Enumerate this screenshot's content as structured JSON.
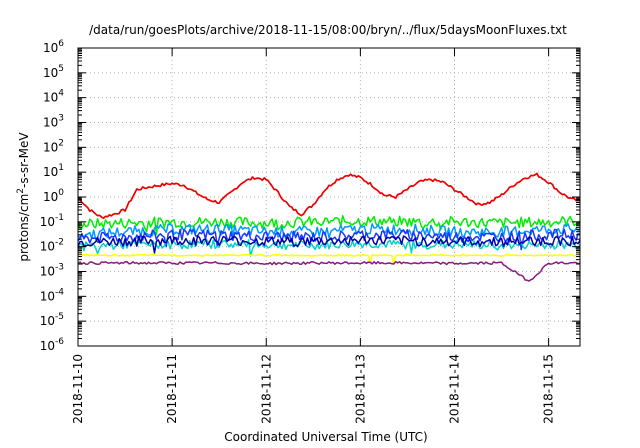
{
  "chart_data": {
    "type": "line",
    "title": "/data/run/goesPlots/archive/2018-11-15/08:00/bryn/../flux/5daysMoonFluxes.txt",
    "xlabel": "Coordinated Universal Time (UTC)",
    "ylabel": "protons/cm²-s-sr-MeV",
    "ylabel_parts": {
      "main": "protons/cm",
      "sup": "2",
      "rest": "-s-sr-MeV"
    },
    "yscale": "log",
    "ylim": [
      1e-06,
      1000000.0
    ],
    "y_tick_labels": [
      {
        "base": "10",
        "exp": "-6",
        "value": 1e-06
      },
      {
        "base": "10",
        "exp": "-5",
        "value": 1e-05
      },
      {
        "base": "10",
        "exp": "-4",
        "value": 0.0001
      },
      {
        "base": "10",
        "exp": "-3",
        "value": 0.001
      },
      {
        "base": "10",
        "exp": "-2",
        "value": 0.01
      },
      {
        "base": "10",
        "exp": "-1",
        "value": 0.1
      },
      {
        "base": "10",
        "exp": "0",
        "value": 1
      },
      {
        "base": "10",
        "exp": "1",
        "value": 10
      },
      {
        "base": "10",
        "exp": "2",
        "value": 100
      },
      {
        "base": "10",
        "exp": "3",
        "value": 1000
      },
      {
        "base": "10",
        "exp": "4",
        "value": 10000
      },
      {
        "base": "10",
        "exp": "5",
        "value": 100000
      },
      {
        "base": "10",
        "exp": "6",
        "value": 1000000
      }
    ],
    "xlim": [
      "2018-11-10T00:00",
      "2018-11-15T08:00"
    ],
    "x_tick_labels": [
      "2018-11-10",
      "2018-11-11",
      "2018-11-12",
      "2018-11-13",
      "2018-11-14",
      "2018-11-15"
    ],
    "grid": true,
    "series": [
      {
        "color": "#ee0000",
        "x": [
          "2018-11-10T00:00",
          "2018-11-10T03:00",
          "2018-11-10T06:00",
          "2018-11-10T09:00",
          "2018-11-10T12:00",
          "2018-11-10T15:00",
          "2018-11-10T18:00",
          "2018-11-10T21:00",
          "2018-11-11T00:00",
          "2018-11-11T03:00",
          "2018-11-11T06:00",
          "2018-11-11T09:00",
          "2018-11-11T12:00",
          "2018-11-11T15:00",
          "2018-11-11T18:00",
          "2018-11-11T21:00",
          "2018-11-12T00:00",
          "2018-11-12T03:00",
          "2018-11-12T06:00",
          "2018-11-12T09:00",
          "2018-11-12T12:00",
          "2018-11-12T15:00",
          "2018-11-12T18:00",
          "2018-11-12T21:00",
          "2018-11-13T00:00",
          "2018-11-13T03:00",
          "2018-11-13T06:00",
          "2018-11-13T09:00",
          "2018-11-13T12:00",
          "2018-11-13T15:00",
          "2018-11-13T18:00",
          "2018-11-13T21:00",
          "2018-11-14T00:00",
          "2018-11-14T03:00",
          "2018-11-14T06:00",
          "2018-11-14T09:00",
          "2018-11-14T12:00",
          "2018-11-14T15:00",
          "2018-11-14T18:00",
          "2018-11-14T21:00",
          "2018-11-15T00:00",
          "2018-11-15T03:00",
          "2018-11-15T06:00",
          "2018-11-15T08:00"
        ],
        "values": [
          1.0,
          0.3,
          0.15,
          0.2,
          0.3,
          2.0,
          2.5,
          3.0,
          3.5,
          3.0,
          1.5,
          0.8,
          0.6,
          1.5,
          4.0,
          6.0,
          5.0,
          1.5,
          0.4,
          0.2,
          0.5,
          2.0,
          5.0,
          8.0,
          6.0,
          3.0,
          1.2,
          1.0,
          2.0,
          4.0,
          5.0,
          4.0,
          2.0,
          1.0,
          0.5,
          0.6,
          1.2,
          3.0,
          6.0,
          8.0,
          4.0,
          1.5,
          0.8,
          0.7
        ]
      },
      {
        "color": "#00ee00",
        "x": [
          "2018-11-10T00:00",
          "2018-11-10T12:00",
          "2018-11-11T00:00",
          "2018-11-11T12:00",
          "2018-11-12T00:00",
          "2018-11-12T12:00",
          "2018-11-13T00:00",
          "2018-11-13T12:00",
          "2018-11-14T00:00",
          "2018-11-14T12:00",
          "2018-11-15T00:00",
          "2018-11-15T08:00"
        ],
        "values": [
          0.08,
          0.09,
          0.1,
          0.1,
          0.09,
          0.1,
          0.11,
          0.1,
          0.1,
          0.09,
          0.1,
          0.11
        ]
      },
      {
        "color": "#0099ff",
        "x": [
          "2018-11-10T00:00",
          "2018-11-10T12:00",
          "2018-11-11T00:00",
          "2018-11-11T12:00",
          "2018-11-12T00:00",
          "2018-11-12T12:00",
          "2018-11-13T00:00",
          "2018-11-13T12:00",
          "2018-11-14T00:00",
          "2018-11-14T12:00",
          "2018-11-15T00:00",
          "2018-11-15T08:00"
        ],
        "values": [
          0.03,
          0.04,
          0.05,
          0.05,
          0.04,
          0.04,
          0.05,
          0.05,
          0.04,
          0.04,
          0.05,
          0.05
        ]
      },
      {
        "color": "#1a37ff",
        "x": [
          "2018-11-10T00:00",
          "2018-11-10T12:00",
          "2018-11-11T00:00",
          "2018-11-11T12:00",
          "2018-11-12T00:00",
          "2018-11-12T12:00",
          "2018-11-13T00:00",
          "2018-11-13T12:00",
          "2018-11-14T00:00",
          "2018-11-14T12:00",
          "2018-11-15T00:00",
          "2018-11-15T08:00"
        ],
        "values": [
          0.02,
          0.025,
          0.03,
          0.03,
          0.025,
          0.025,
          0.03,
          0.03,
          0.025,
          0.025,
          0.03,
          0.03
        ]
      },
      {
        "color": "#00d4c8",
        "x": [
          "2018-11-10T00:00",
          "2018-11-10T12:00",
          "2018-11-11T00:00",
          "2018-11-11T12:00",
          "2018-11-12T00:00",
          "2018-11-12T12:00",
          "2018-11-13T00:00",
          "2018-11-13T12:00",
          "2018-11-14T00:00",
          "2018-11-14T12:00",
          "2018-11-15T00:00",
          "2018-11-15T08:00"
        ],
        "values": [
          0.01,
          0.012,
          0.012,
          0.013,
          0.012,
          0.011,
          0.013,
          0.012,
          0.012,
          0.011,
          0.012,
          0.012
        ]
      },
      {
        "color": "#0000aa",
        "x": [
          "2018-11-10T00:00",
          "2018-11-10T12:00",
          "2018-11-11T00:00",
          "2018-11-11T12:00",
          "2018-11-12T00:00",
          "2018-11-12T12:00",
          "2018-11-13T00:00",
          "2018-11-13T12:00",
          "2018-11-14T00:00",
          "2018-11-14T12:00",
          "2018-11-15T00:00",
          "2018-11-15T08:00"
        ],
        "values": [
          0.015,
          0.016,
          0.018,
          0.018,
          0.016,
          0.016,
          0.018,
          0.017,
          0.016,
          0.016,
          0.017,
          0.018
        ]
      },
      {
        "color": "#ffff00",
        "x": [
          "2018-11-10T00:00",
          "2018-11-10T12:00",
          "2018-11-11T00:00",
          "2018-11-11T12:00",
          "2018-11-12T00:00",
          "2018-11-12T12:00",
          "2018-11-13T00:00",
          "2018-11-13T12:00",
          "2018-11-14T00:00",
          "2018-11-14T12:00",
          "2018-11-15T00:00",
          "2018-11-15T08:00"
        ],
        "values": [
          0.0045,
          0.0045,
          0.0045,
          0.0045,
          0.0045,
          0.0045,
          0.0045,
          0.0045,
          0.0045,
          0.0045,
          0.0045,
          0.0045
        ]
      },
      {
        "color": "#8b1a7a",
        "x": [
          "2018-11-10T00:00",
          "2018-11-10T12:00",
          "2018-11-11T00:00",
          "2018-11-11T12:00",
          "2018-11-12T00:00",
          "2018-11-12T12:00",
          "2018-11-13T00:00",
          "2018-11-13T12:00",
          "2018-11-14T00:00",
          "2018-11-14T12:00",
          "2018-11-14T19:00",
          "2018-11-15T00:00",
          "2018-11-15T08:00"
        ],
        "values": [
          0.0022,
          0.0022,
          0.0022,
          0.0022,
          0.0021,
          0.0022,
          0.0022,
          0.0022,
          0.0021,
          0.0022,
          0.0004,
          0.0022,
          0.0022
        ]
      }
    ]
  }
}
